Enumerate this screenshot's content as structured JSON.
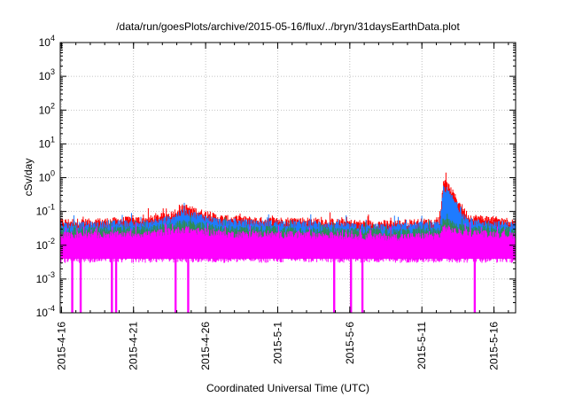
{
  "chart_data": {
    "type": "area",
    "title": "/data/run/goesPlots/archive/2015-05-16/flux/../bryn/31daysEarthData.plot",
    "xlabel": "Coordinated Universal Time (UTC)",
    "ylabel": "cSv/day",
    "y_scale": "log",
    "ylim": [
      0.0001,
      10000
    ],
    "xlim": [
      "2015-04-15T22:00",
      "2015-05-17T12:00"
    ],
    "grid": true,
    "legend": "none",
    "x_tick_labels": [
      "2015-4-16",
      "2015-4-21",
      "2015-4-26",
      "2015-5-1",
      "2015-5-6",
      "2015-5-11",
      "2015-5-16"
    ],
    "x_ticks": [
      "2015-04-16",
      "2015-04-21",
      "2015-04-26",
      "2015-05-01",
      "2015-05-06",
      "2015-05-11",
      "2015-05-16"
    ],
    "y_ticks": [
      {
        "value": 0.0001,
        "base": "10",
        "exp": "-4"
      },
      {
        "value": 0.001,
        "base": "10",
        "exp": "-3"
      },
      {
        "value": 0.01,
        "base": "10",
        "exp": "-2"
      },
      {
        "value": 0.1,
        "base": "10",
        "exp": "-1"
      },
      {
        "value": 1,
        "base": "10",
        "exp": "0"
      },
      {
        "value": 10,
        "base": "10",
        "exp": "1"
      },
      {
        "value": 100,
        "base": "10",
        "exp": "2"
      },
      {
        "value": 1000,
        "base": "10",
        "exp": "3"
      },
      {
        "value": 10000,
        "base": "10",
        "exp": "4"
      }
    ],
    "series": [
      {
        "color": "#ff0000",
        "values": [
          [
            "2015-04-16T00:00",
            0.05
          ],
          [
            "2015-04-18T00:00",
            0.05
          ],
          [
            "2015-04-20T00:00",
            0.055
          ],
          [
            "2015-04-22T00:00",
            0.06
          ],
          [
            "2015-04-23T12:00",
            0.08
          ],
          [
            "2015-04-24T12:00",
            0.14
          ],
          [
            "2015-04-25T12:00",
            0.1
          ],
          [
            "2015-04-27T00:00",
            0.065
          ],
          [
            "2015-04-30T00:00",
            0.055
          ],
          [
            "2015-05-03T00:00",
            0.055
          ],
          [
            "2015-05-05T00:00",
            0.05
          ],
          [
            "2015-05-07T00:00",
            0.045
          ],
          [
            "2015-05-09T00:00",
            0.045
          ],
          [
            "2015-05-11T00:00",
            0.05
          ],
          [
            "2015-05-12T06:00",
            0.05
          ],
          [
            "2015-05-12T12:00",
            0.85
          ],
          [
            "2015-05-13T00:00",
            0.45
          ],
          [
            "2015-05-13T12:00",
            0.2
          ],
          [
            "2015-05-14T06:00",
            0.07
          ],
          [
            "2015-05-17T12:00",
            0.05
          ]
        ]
      },
      {
        "color": "#1e7bff",
        "values": [
          [
            "2015-04-16T00:00",
            0.04
          ],
          [
            "2015-04-18T00:00",
            0.04
          ],
          [
            "2015-04-20T00:00",
            0.045
          ],
          [
            "2015-04-22T00:00",
            0.045
          ],
          [
            "2015-04-23T12:00",
            0.06
          ],
          [
            "2015-04-24T12:00",
            0.1
          ],
          [
            "2015-04-25T12:00",
            0.075
          ],
          [
            "2015-04-27T00:00",
            0.05
          ],
          [
            "2015-04-30T00:00",
            0.045
          ],
          [
            "2015-05-03T00:00",
            0.045
          ],
          [
            "2015-05-05T00:00",
            0.04
          ],
          [
            "2015-05-07T00:00",
            0.035
          ],
          [
            "2015-05-09T00:00",
            0.035
          ],
          [
            "2015-05-11T00:00",
            0.04
          ],
          [
            "2015-05-12T06:00",
            0.04
          ],
          [
            "2015-05-12T12:00",
            0.55
          ],
          [
            "2015-05-13T00:00",
            0.3
          ],
          [
            "2015-05-13T12:00",
            0.13
          ],
          [
            "2015-05-14T06:00",
            0.05
          ],
          [
            "2015-05-17T12:00",
            0.04
          ]
        ]
      },
      {
        "color": "#2e8b57",
        "values": [
          [
            "2015-04-16T00:00",
            0.028
          ],
          [
            "2015-04-22T00:00",
            0.03
          ],
          [
            "2015-04-24T12:00",
            0.045
          ],
          [
            "2015-04-27T00:00",
            0.032
          ],
          [
            "2015-05-05T00:00",
            0.028
          ],
          [
            "2015-05-09T00:00",
            0.025
          ],
          [
            "2015-05-12T06:00",
            0.027
          ],
          [
            "2015-05-12T12:00",
            0.06
          ],
          [
            "2015-05-13T12:00",
            0.035
          ],
          [
            "2015-05-17T12:00",
            0.028
          ]
        ]
      },
      {
        "color": "#ff00ff",
        "values": [
          [
            "2015-04-16T00:00",
            0.02
          ],
          [
            "2015-04-22T00:00",
            0.022
          ],
          [
            "2015-04-24T12:00",
            0.03
          ],
          [
            "2015-04-27T00:00",
            0.022
          ],
          [
            "2015-05-05T00:00",
            0.02
          ],
          [
            "2015-05-09T00:00",
            0.018
          ],
          [
            "2015-05-12T06:00",
            0.02
          ],
          [
            "2015-05-12T12:00",
            0.035
          ],
          [
            "2015-05-13T12:00",
            0.025
          ],
          [
            "2015-05-17T12:00",
            0.02
          ]
        ]
      }
    ],
    "magenta_floor": 0.004,
    "dropouts": [
      "2015-04-16T18:00",
      "2015-04-17T08:00",
      "2015-04-19T12:00",
      "2015-04-19T19:00",
      "2015-04-23T22:00",
      "2015-04-24T19:00",
      "2015-05-04T22:00",
      "2015-05-06T02:00",
      "2015-05-06T21:00",
      "2015-05-14T16:00"
    ]
  }
}
